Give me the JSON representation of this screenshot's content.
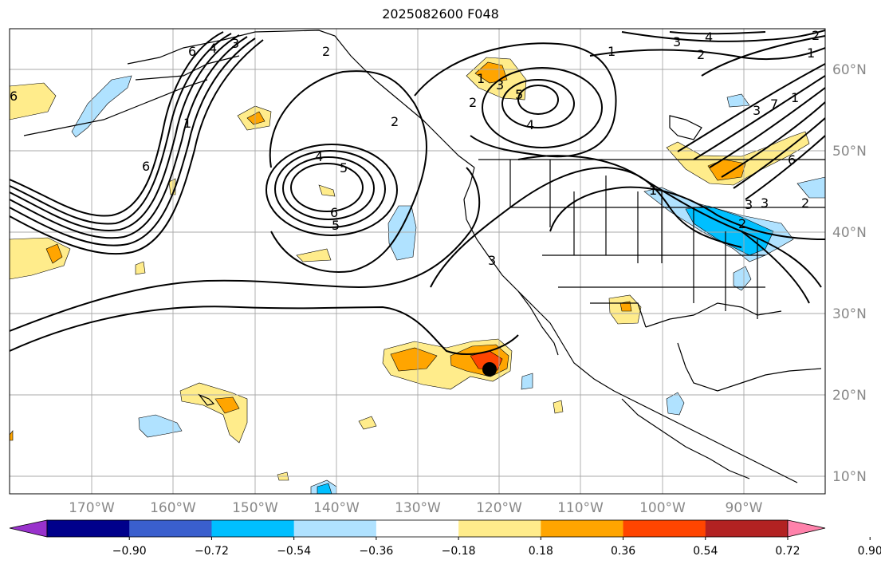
{
  "title": "2025082600 F048",
  "map": {
    "lat_labels": [
      "60°N",
      "50°N",
      "40°N",
      "30°N",
      "20°N",
      "10°N"
    ],
    "lon_labels": [
      "170°W",
      "160°W",
      "150°W",
      "140°W",
      "130°W",
      "120°W",
      "110°W",
      "100°W",
      "90°W"
    ],
    "contour_labels": [
      "6",
      "4",
      "3",
      "2",
      "1",
      "6",
      "4",
      "5",
      "6",
      "5",
      "2",
      "1",
      "3",
      "5",
      "4",
      "3",
      "2",
      "1",
      "4",
      "3",
      "2",
      "1",
      "6",
      "3",
      "7",
      "1",
      "2",
      "3",
      "3",
      "1",
      "2",
      "2",
      "6"
    ],
    "marker": "storm-center-dot"
  },
  "colorbar": {
    "colors": [
      "#9932cc",
      "#00008b",
      "#3a5fcd",
      "#00bfff",
      "#b0e2ff",
      "#ffffff",
      "#ffec8b",
      "#ffa500",
      "#ff4500",
      "#b22222",
      "#ff82ab"
    ],
    "tick_labels": [
      "−0.90",
      "−0.72",
      "−0.54",
      "−0.36",
      "−0.18",
      "0.18",
      "0.36",
      "0.54",
      "0.72",
      "0.90"
    ]
  }
}
